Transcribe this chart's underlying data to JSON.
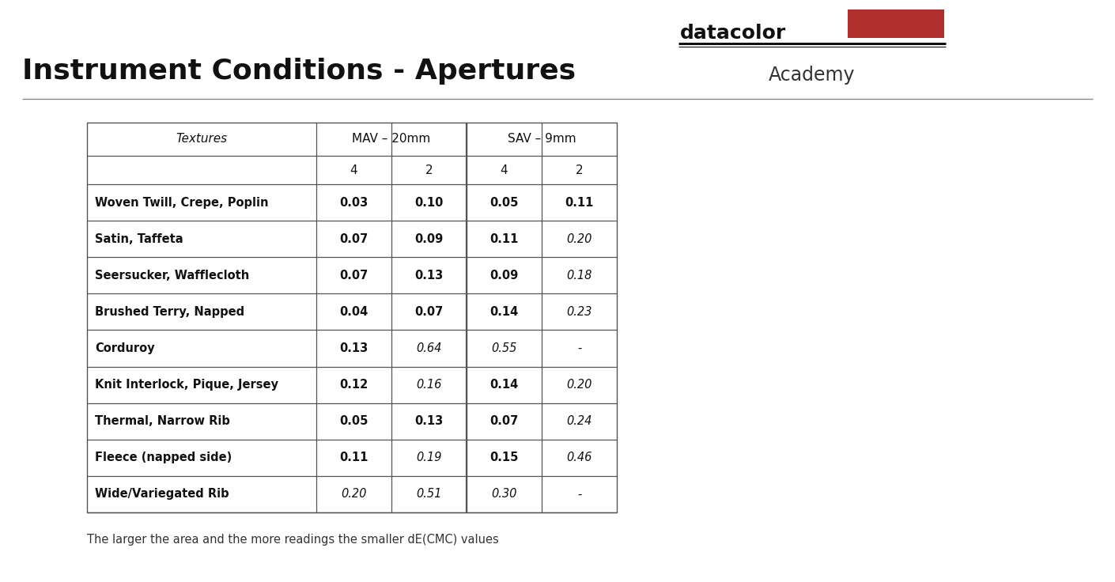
{
  "title": "Instrument Conditions - Apertures",
  "brand": "datacolor",
  "brand_subtitle": "Academy",
  "brand_color": "#b03030",
  "background_color": "#ffffff",
  "footer_note": "The larger the area and the more readings the smaller dE(CMC) values",
  "rows": [
    {
      "texture": "Woven Twill, Crepe, Poplin",
      "vals": [
        "0.03",
        "0.10",
        "0.05",
        "0.11"
      ],
      "bold": [
        true,
        true,
        true,
        true
      ]
    },
    {
      "texture": "Satin, Taffeta",
      "vals": [
        "0.07",
        "0.09",
        "0.11",
        "0.20"
      ],
      "bold": [
        true,
        true,
        true,
        false
      ]
    },
    {
      "texture": "Seersucker, Wafflecloth",
      "vals": [
        "0.07",
        "0.13",
        "0.09",
        "0.18"
      ],
      "bold": [
        true,
        true,
        true,
        false
      ]
    },
    {
      "texture": "Brushed Terry, Napped",
      "vals": [
        "0.04",
        "0.07",
        "0.14",
        "0.23"
      ],
      "bold": [
        true,
        true,
        true,
        false
      ]
    },
    {
      "texture": "Corduroy",
      "vals": [
        "0.13",
        "0.64",
        "0.55",
        "-"
      ],
      "bold": [
        true,
        false,
        false,
        false
      ]
    },
    {
      "texture": "Knit Interlock, Pique, Jersey",
      "vals": [
        "0.12",
        "0.16",
        "0.14",
        "0.20"
      ],
      "bold": [
        true,
        false,
        true,
        false
      ]
    },
    {
      "texture": "Thermal, Narrow Rib",
      "vals": [
        "0.05",
        "0.13",
        "0.07",
        "0.24"
      ],
      "bold": [
        true,
        true,
        true,
        false
      ]
    },
    {
      "texture": "Fleece (napped side)",
      "vals": [
        "0.11",
        "0.19",
        "0.15",
        "0.46"
      ],
      "bold": [
        true,
        false,
        true,
        false
      ]
    },
    {
      "texture": "Wide/Variegated Rib",
      "vals": [
        "0.20",
        "0.51",
        "0.30",
        "-"
      ],
      "bold": [
        false,
        false,
        false,
        false
      ]
    }
  ]
}
